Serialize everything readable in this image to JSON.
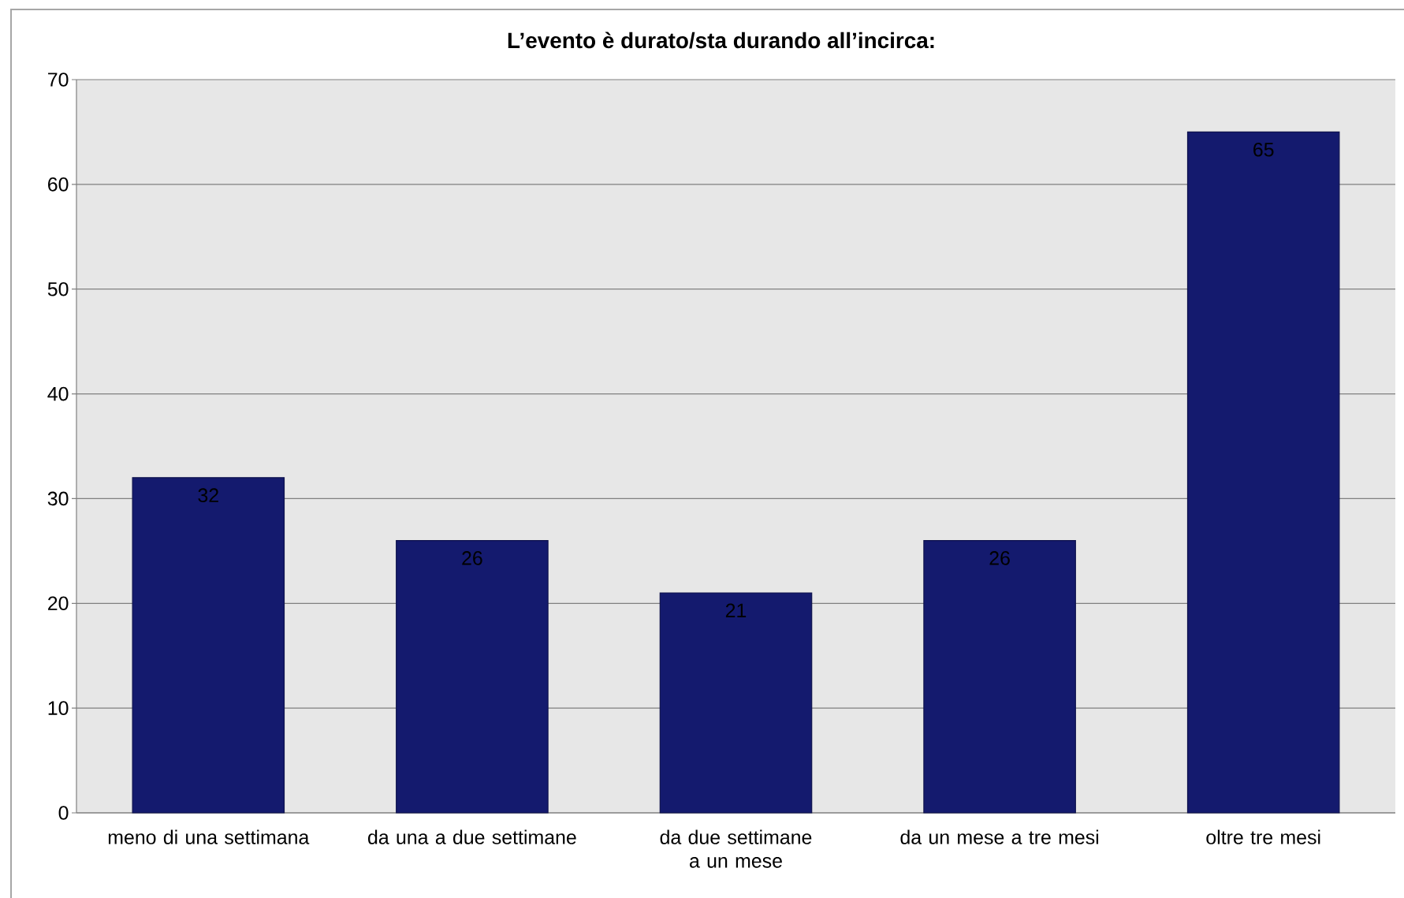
{
  "chart_data": {
    "type": "bar",
    "title": "L’evento è durato/sta durando all’incirca:",
    "categories": [
      "meno di una settimana",
      "da una a due settimane",
      "da due settimane a un mese",
      "da un mese a tre mesi",
      "oltre tre mesi"
    ],
    "values": [
      32,
      26,
      21,
      26,
      65
    ],
    "color": "#141a6e",
    "ylim": [
      0,
      70
    ],
    "yticks": [
      0,
      10,
      20,
      30,
      40,
      50,
      60,
      70
    ],
    "grid": "y",
    "data_labels": true
  }
}
